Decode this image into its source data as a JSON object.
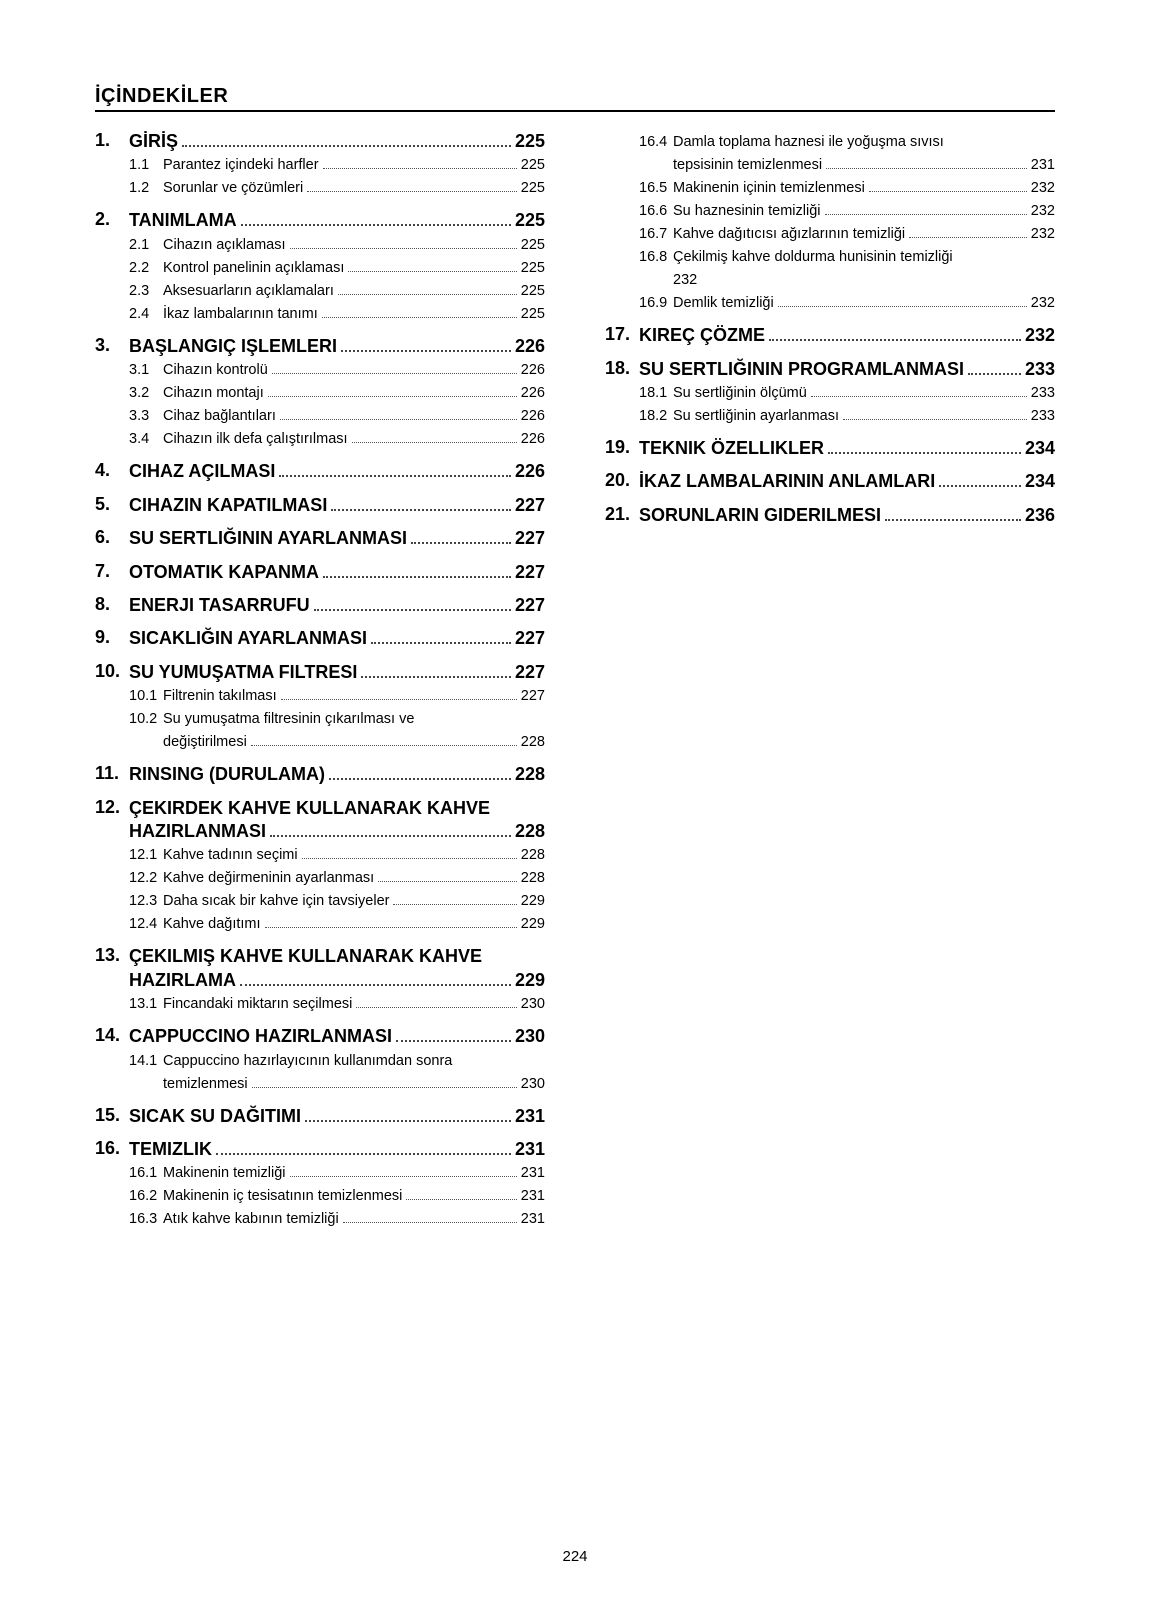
{
  "title": "İÇİNDEKİLER",
  "pageNumber": "224",
  "columns": [
    [
      {
        "num": "1.",
        "title": "GİRİŞ",
        "page": "225",
        "subs": [
          {
            "num": "1.1",
            "label": "Parantez içindeki harfler",
            "page": "225"
          },
          {
            "num": "1.2",
            "label": "Sorunlar ve çözümleri",
            "page": "225"
          }
        ]
      },
      {
        "num": "2.",
        "title": "TANIMLAMA",
        "page": "225",
        "subs": [
          {
            "num": "2.1",
            "label": "Cihazın açıklaması",
            "page": "225"
          },
          {
            "num": "2.2",
            "label": "Kontrol panelinin açıklaması",
            "page": "225"
          },
          {
            "num": "2.3",
            "label": "Aksesuarların açıklamaları",
            "page": "225"
          },
          {
            "num": "2.4",
            "label": "İkaz lambalarının tanımı",
            "page": "225"
          }
        ]
      },
      {
        "num": "3.",
        "title": "BAŞLANGIÇ IŞLEMLERI",
        "page": "226",
        "subs": [
          {
            "num": "3.1",
            "label": "Cihazın kontrolü",
            "page": "226"
          },
          {
            "num": "3.2",
            "label": "Cihazın montajı",
            "page": "226"
          },
          {
            "num": "3.3",
            "label": "Cihaz bağlantıları",
            "page": "226"
          },
          {
            "num": "3.4",
            "label": "Cihazın ilk defa çalıştırılması",
            "page": "226"
          }
        ]
      },
      {
        "num": "4.",
        "title": "CIHAZ AÇILMASI",
        "page": "226",
        "subs": []
      },
      {
        "num": "5.",
        "title": "CIHAZIN KAPATILMASI",
        "page": "227",
        "subs": []
      },
      {
        "num": "6.",
        "title": "SU SERTLIĞININ AYARLANMASI",
        "page": "227",
        "subs": []
      },
      {
        "num": "7.",
        "title": "OTOMATIK KAPANMA",
        "page": "227",
        "subs": []
      },
      {
        "num": "8.",
        "title": "ENERJI TASARRUFU",
        "page": "227",
        "subs": []
      },
      {
        "num": "9.",
        "title": "SICAKLIĞIN AYARLANMASI",
        "page": "227",
        "subs": []
      },
      {
        "num": "10.",
        "title": "SU YUMUŞATMA FILTRESI",
        "page": "227",
        "subs": [
          {
            "num": "10.1",
            "label": "Filtrenin takılması",
            "page": "227"
          },
          {
            "num": "10.2",
            "label": "Su yumuşatma filtresinin çıkarılması ve",
            "label2": "değiştirilmesi",
            "page": "228"
          }
        ]
      },
      {
        "num": "11.",
        "title": "RINSING (DURULAMA)",
        "page": "228",
        "subs": []
      },
      {
        "num": "12.",
        "title": "ÇEKIRDEK KAHVE KULLANARAK KAHVE",
        "title2": "HAZIRLANMASI",
        "page": "228",
        "subs": [
          {
            "num": "12.1",
            "label": "Kahve tadının seçimi",
            "page": "228"
          },
          {
            "num": "12.2",
            "label": "Kahve değirmeninin ayarlanması",
            "page": "228"
          },
          {
            "num": "12.3",
            "label": "Daha sıcak bir kahve için tavsiyeler",
            "page": "229"
          },
          {
            "num": "12.4",
            "label": "Kahve dağıtımı",
            "page": "229"
          }
        ]
      },
      {
        "num": "13.",
        "title": "ÇEKILMIŞ KAHVE KULLANARAK KAHVE",
        "title2": "HAZIRLAMA",
        "page": "229",
        "subs": [
          {
            "num": "13.1",
            "label": "Fincandaki miktarın seçilmesi",
            "page": "230"
          }
        ]
      },
      {
        "num": "14.",
        "title": "CAPPUCCINO HAZIRLANMASI",
        "page": "230",
        "subs": [
          {
            "num": "14.1",
            "label": "Cappuccino hazırlayıcının kullanımdan sonra",
            "label2": "temizlenmesi",
            "page": "230"
          }
        ]
      },
      {
        "num": "15.",
        "title": "SICAK SU DAĞITIMI",
        "page": "231",
        "subs": []
      },
      {
        "num": "16.",
        "title": "TEMIZLIK",
        "page": "231",
        "subs": [
          {
            "num": "16.1",
            "label": "Makinenin temizliği",
            "page": "231"
          },
          {
            "num": "16.2",
            "label": "Makinenin iç tesisatının temizlenmesi",
            "page": "231"
          },
          {
            "num": "16.3",
            "label": "Atık kahve kabının temizliği",
            "page": "231"
          }
        ]
      }
    ],
    [
      {
        "continuation": true,
        "subs": [
          {
            "num": "16.4",
            "label": "Damla toplama haznesi ile yoğuşma sıvısı",
            "label2": "tepsisinin temizlenmesi",
            "page": "231"
          },
          {
            "num": "16.5",
            "label": "Makinenin içinin temizlenmesi",
            "page": "232"
          },
          {
            "num": "16.6",
            "label": "Su haznesinin temizliği",
            "page": "232"
          },
          {
            "num": "16.7",
            "label": "Kahve dağıtıcısı ağızlarının temizliği",
            "page": "232"
          },
          {
            "num": "16.8",
            "label": "Çekilmiş kahve doldurma hunisinin temizliği",
            "label2": "232",
            "noPagenoDots": true,
            "page": ""
          },
          {
            "num": "16.9",
            "label": "Demlik temizliği",
            "page": "232"
          }
        ]
      },
      {
        "num": "17.",
        "title": "KIREÇ ÇÖZME",
        "page": "232",
        "subs": []
      },
      {
        "num": "18.",
        "title": "SU SERTLIĞININ PROGRAMLANMASI",
        "page": "233",
        "subs": [
          {
            "num": "18.1",
            "label": "Su sertliğinin ölçümü",
            "page": "233"
          },
          {
            "num": "18.2",
            "label": "Su sertliğinin ayarlanması",
            "page": "233"
          }
        ]
      },
      {
        "num": "19.",
        "title": "TEKNIK ÖZELLIKLER",
        "page": "234",
        "subs": []
      },
      {
        "num": "20.",
        "title": "İKAZ LAMBALARININ ANLAMLARI",
        "page": "234",
        "subs": []
      },
      {
        "num": "21.",
        "title": "SORUNLARIN GIDERILMESI",
        "page": "236",
        "subs": []
      }
    ]
  ]
}
